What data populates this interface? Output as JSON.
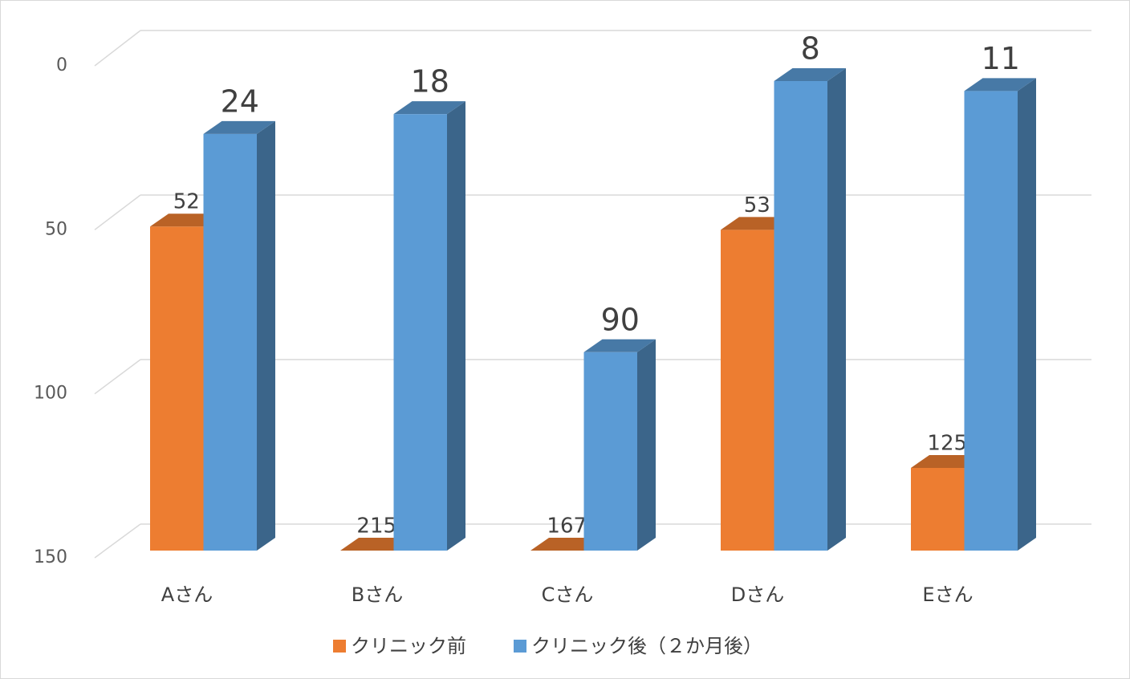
{
  "chart_data": {
    "type": "bar3d",
    "categories": [
      "Aさん",
      "Bさん",
      "Cさん",
      "Dさん",
      "Eさん"
    ],
    "series": [
      {
        "name": "クリニック前",
        "color": "#ED7D31",
        "values": [
          52,
          215,
          167,
          53,
          125
        ]
      },
      {
        "name": "クリニック後（２か月後）",
        "color": "#5B9BD5",
        "values": [
          24,
          18,
          90,
          8,
          11
        ]
      }
    ],
    "ylim": [
      0,
      150
    ],
    "yticks": [
      0,
      50,
      100,
      150
    ],
    "y_reversed": true,
    "grid": true,
    "legend": "bottom"
  }
}
